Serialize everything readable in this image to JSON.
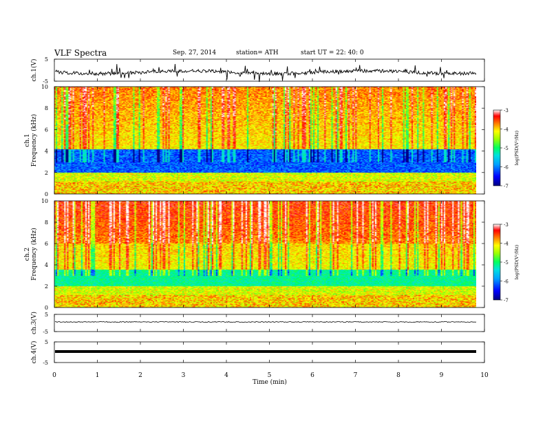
{
  "header": {
    "title": "VLF  Spectra",
    "date": "Sep. 27, 2014",
    "station": "station= ATH",
    "start": "start  UT  =   22: 40: 0"
  },
  "chart_data": [
    {
      "type": "line",
      "panel": "ch1-waveform",
      "ylabel": "ch.1(V)",
      "ylim": [
        -5,
        5
      ],
      "yticks": [
        "5",
        "-5"
      ],
      "series": [
        {
          "values": [
            0.1,
            0.0,
            -0.1,
            0.2,
            -0.2,
            0.1,
            0.0,
            -0.3,
            0.1,
            0.0,
            0.2,
            -0.1,
            0.0,
            -0.2,
            0.1,
            0.0,
            -0.1,
            0.1,
            0.2,
            -0.2,
            0.0,
            0.1,
            -0.1,
            0.0,
            0.1,
            -0.2,
            0.0,
            0.1,
            0.0,
            -0.1
          ]
        }
      ]
    },
    {
      "type": "heatmap",
      "panel": "ch1-spectrogram",
      "ylabel": "ch.1\nFrequency  (kHz)",
      "ylim": [
        0,
        10
      ],
      "yticks": [
        "0",
        "2",
        "4",
        "6",
        "8",
        "10"
      ],
      "colorbar": {
        "label": "log(PSD(V²/Hz)",
        "range": [
          -7,
          -3
        ],
        "ticks": [
          "-3",
          "-4",
          "-5",
          "-6",
          "-7"
        ]
      }
    },
    {
      "type": "heatmap",
      "panel": "ch2-spectrogram",
      "ylabel": "ch.2\nFrequency  (kHz)",
      "ylim": [
        0,
        10
      ],
      "yticks": [
        "0",
        "2",
        "4",
        "6",
        "8",
        "10"
      ],
      "colorbar": {
        "label": "log(PSD(V²/Hz)",
        "range": [
          -7,
          -3
        ],
        "ticks": [
          "-3",
          "-4",
          "-5",
          "-6",
          "-7"
        ]
      }
    },
    {
      "type": "line",
      "panel": "ch3-waveform",
      "ylabel": "ch.3(V)",
      "ylim": [
        -5,
        5
      ],
      "yticks": [
        "5",
        "-5"
      ]
    },
    {
      "type": "line",
      "panel": "ch4-waveform",
      "ylabel": "ch.4(V)",
      "ylim": [
        -5,
        5
      ],
      "yticks": [
        "5",
        "-5"
      ]
    }
  ],
  "xaxis": {
    "label": "Time  (min)",
    "range": [
      0,
      10
    ],
    "ticks": [
      "0",
      "1",
      "2",
      "3",
      "4",
      "5",
      "6",
      "7",
      "8",
      "9",
      "10"
    ]
  },
  "colors": {
    "scale": [
      "#000080",
      "#0000ff",
      "#00a0ff",
      "#00e0e0",
      "#00ff60",
      "#a0ff00",
      "#ffff00",
      "#ff8000",
      "#ff0000",
      "#ffffff"
    ]
  }
}
